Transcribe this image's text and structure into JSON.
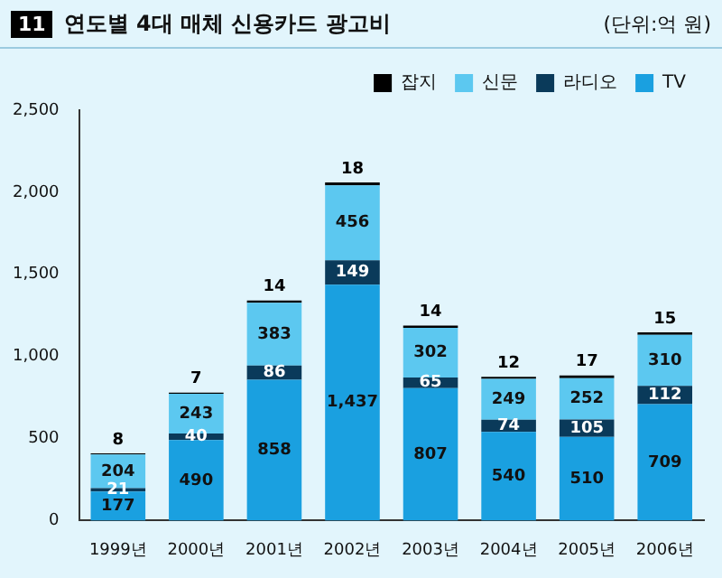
{
  "chart_data": {
    "type": "bar",
    "title": "연도별 4대 매체 신용카드 광고비",
    "annotations": [
      "11",
      "(단위:억 원)"
    ],
    "categories": [
      "1999년",
      "2000년",
      "2001년",
      "2002년",
      "2003년",
      "2004년",
      "2005년",
      "2006년"
    ],
    "series": [
      {
        "name": "TV",
        "color": "#1aa0e0",
        "values": [
          177,
          490,
          858,
          1437,
          807,
          540,
          510,
          709
        ],
        "value_labels": [
          "177",
          "490",
          "858",
          "1,437",
          "807",
          "540",
          "510",
          "709"
        ]
      },
      {
        "name": "라디오",
        "color": "#0a3a5a",
        "values": [
          21,
          40,
          86,
          149,
          65,
          74,
          105,
          112
        ],
        "value_labels": [
          "21",
          "40",
          "86",
          "149",
          "65",
          "74",
          "105",
          "112"
        ]
      },
      {
        "name": "신문",
        "color": "#5cc8f0",
        "values": [
          204,
          243,
          383,
          456,
          302,
          249,
          252,
          310
        ],
        "value_labels": [
          "204",
          "243",
          "383",
          "456",
          "302",
          "249",
          "252",
          "310"
        ]
      },
      {
        "name": "잡지",
        "color": "#000000",
        "values": [
          8,
          7,
          14,
          18,
          14,
          12,
          17,
          15
        ],
        "value_labels": [
          "8",
          "7",
          "14",
          "18",
          "14",
          "12",
          "17",
          "15"
        ]
      }
    ],
    "stacked": true,
    "legend": "top right",
    "grid": false,
    "ylim": [
      0,
      2500
    ],
    "yticks": [
      0,
      500,
      {
        "value": 1000,
        "label": "1,000"
      },
      {
        "value": 1500,
        "label": "1,500"
      },
      {
        "value": 2000,
        "label": "2,000"
      },
      {
        "value": 2500,
        "label": "2,500"
      }
    ]
  }
}
